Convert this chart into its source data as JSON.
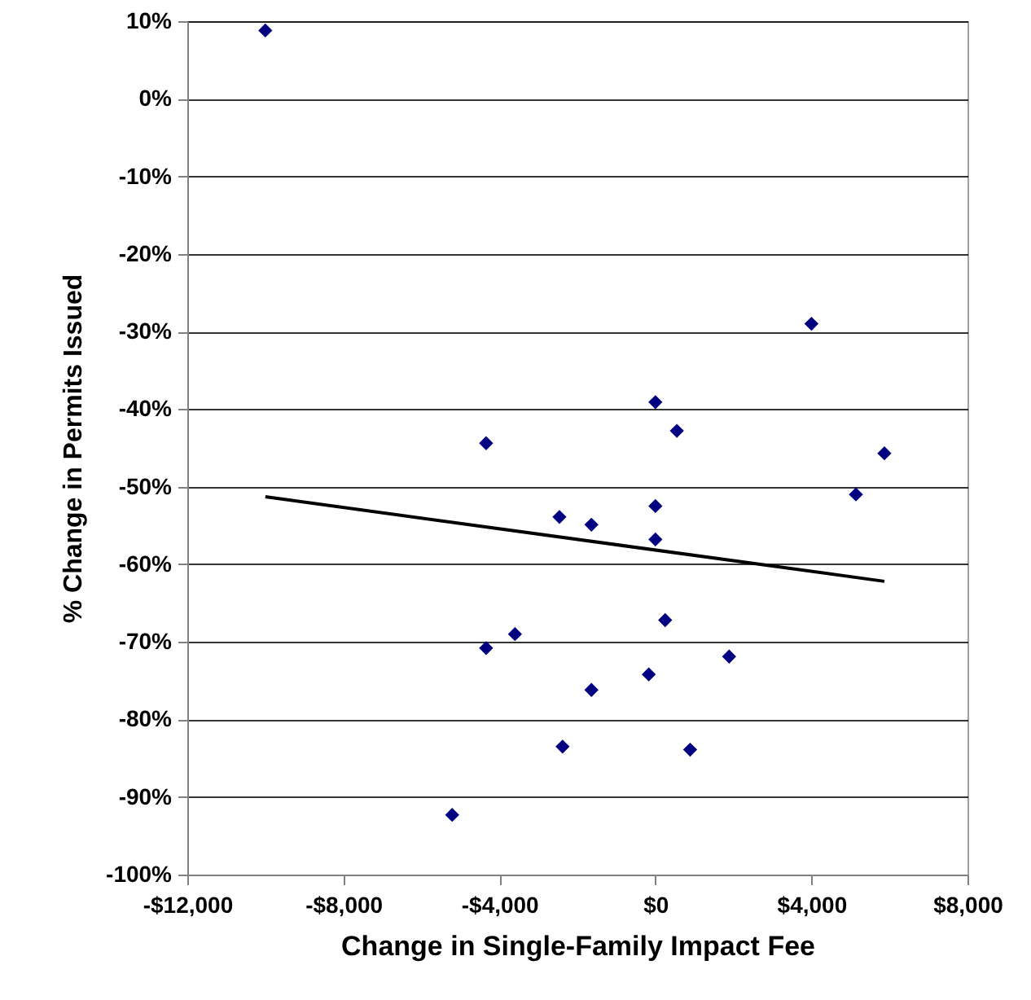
{
  "chart_data": {
    "type": "scatter",
    "xlabel": "Change in Single-Family Impact Fee",
    "ylabel": "% Change in Permits Issued",
    "xlim": [
      -12000,
      8000
    ],
    "ylim": [
      -100,
      10
    ],
    "xticks": [
      {
        "value": -12000,
        "label": "-$12,000"
      },
      {
        "value": -8000,
        "label": "-$8,000"
      },
      {
        "value": -4000,
        "label": "-$4,000"
      },
      {
        "value": 0,
        "label": "$0"
      },
      {
        "value": 4000,
        "label": "$4,000"
      },
      {
        "value": 8000,
        "label": "$8,000"
      }
    ],
    "yticks": [
      {
        "value": 10,
        "label": "10%"
      },
      {
        "value": 0,
        "label": "0%"
      },
      {
        "value": -10,
        "label": "-10%"
      },
      {
        "value": -20,
        "label": "-20%"
      },
      {
        "value": -30,
        "label": "-30%"
      },
      {
        "value": -40,
        "label": "-40%"
      },
      {
        "value": -50,
        "label": "-50%"
      },
      {
        "value": -60,
        "label": "-60%"
      },
      {
        "value": -70,
        "label": "-70%"
      },
      {
        "value": -80,
        "label": "-80%"
      },
      {
        "value": -90,
        "label": "-90%"
      },
      {
        "value": -100,
        "label": "-100%"
      }
    ],
    "grid": "y",
    "series": [
      {
        "marker": "diamond",
        "color": "#000080",
        "x": [
          -10000,
          4000,
          0,
          550,
          -4340,
          5870,
          5140,
          0,
          -2460,
          -1640,
          0,
          250,
          -3600,
          -4340,
          1890,
          -170,
          -1640,
          -2380,
          890,
          -5210
        ],
        "values": [
          8.8,
          -29.0,
          -39.1,
          -42.8,
          -44.4,
          -45.7,
          -51.0,
          -52.5,
          -53.9,
          -54.9,
          -56.8,
          -67.2,
          -69.0,
          -70.8,
          -71.9,
          -74.2,
          -76.2,
          -83.5,
          -83.9,
          -92.3
        ]
      },
      {
        "type": "line",
        "marker": "none",
        "color": "#000000",
        "line_style": "solid",
        "x": [
          -10000,
          5870
        ],
        "values": [
          -51.3,
          -62.2
        ]
      }
    ]
  }
}
